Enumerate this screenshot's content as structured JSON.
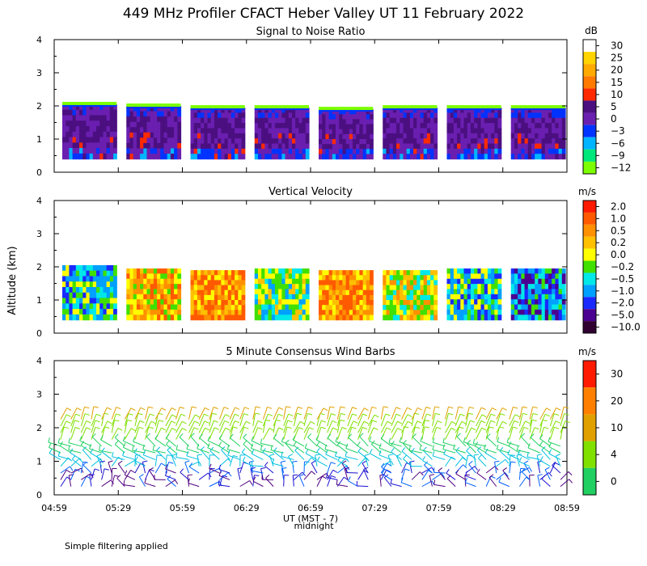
{
  "title": "449 MHz Profiler CFACT Heber Valley UT 11 February 2022",
  "ylabel": "Altitude (km)",
  "xlabel": "UT  (MST - 7)",
  "x_note": "midnight",
  "footnote": "Simple filtering applied",
  "x_ticks": [
    "04:59",
    "05:29",
    "05:59",
    "06:29",
    "06:59",
    "07:29",
    "07:59",
    "08:29",
    "08:59"
  ],
  "y_ticks": [
    "0",
    "1",
    "2",
    "3",
    "4"
  ],
  "chart_data": [
    {
      "type": "heatmap",
      "title": "Signal to Noise Ratio",
      "unit": "dB",
      "ylim": [
        0,
        4
      ],
      "colorbar": [
        "30",
        "25",
        "20",
        "15",
        "10",
        "5",
        "0",
        "−3",
        "−6",
        "−9",
        "−12"
      ],
      "colors": [
        "#ffffff",
        "#ffd400",
        "#ffaa00",
        "#ff7a00",
        "#ff2a00",
        "#4b0f80",
        "#6a1fb0",
        "#0033ff",
        "#00b4ff",
        "#00e87a",
        "#7cff00"
      ],
      "blocks": [
        {
          "start": "04:59",
          "end": "05:29",
          "bottom_km": 0.4,
          "top_km": 2.05
        },
        {
          "start": "05:29",
          "end": "05:59",
          "bottom_km": 0.4,
          "top_km": 2.0
        },
        {
          "start": "05:59",
          "end": "06:29",
          "bottom_km": 0.4,
          "top_km": 1.95
        },
        {
          "start": "06:29",
          "end": "06:59",
          "bottom_km": 0.4,
          "top_km": 1.95
        },
        {
          "start": "06:59",
          "end": "07:29",
          "bottom_km": 0.4,
          "top_km": 1.9
        },
        {
          "start": "07:29",
          "end": "07:59",
          "bottom_km": 0.4,
          "top_km": 1.95
        },
        {
          "start": "07:59",
          "end": "08:29",
          "bottom_km": 0.4,
          "top_km": 1.95
        },
        {
          "start": "08:29",
          "end": "08:59",
          "bottom_km": 0.4,
          "top_km": 1.95
        }
      ]
    },
    {
      "type": "heatmap",
      "title": "Vertical Velocity",
      "unit": "m/s",
      "ylim": [
        0,
        4
      ],
      "colorbar": [
        "2.0",
        "1.0",
        "0.5",
        "0.2",
        "0.0",
        "−0.2",
        "−0.5",
        "−1.0",
        "−2.0",
        "−5.0",
        "−10.0"
      ],
      "colors": [
        "#ff1a00",
        "#ff5a00",
        "#ff9000",
        "#ffc000",
        "#ffff00",
        "#40e000",
        "#00e8e8",
        "#00a0ff",
        "#1a2aff",
        "#4a0090",
        "#300030"
      ],
      "blocks": [
        {
          "start": "04:59",
          "end": "05:29",
          "bottom_km": 0.4,
          "top_km": 2.05
        },
        {
          "start": "05:29",
          "end": "05:59",
          "bottom_km": 0.4,
          "top_km": 1.95
        },
        {
          "start": "05:59",
          "end": "06:29",
          "bottom_km": 0.4,
          "top_km": 1.9
        },
        {
          "start": "06:29",
          "end": "06:59",
          "bottom_km": 0.4,
          "top_km": 1.95
        },
        {
          "start": "06:59",
          "end": "07:29",
          "bottom_km": 0.4,
          "top_km": 1.9
        },
        {
          "start": "07:29",
          "end": "07:59",
          "bottom_km": 0.4,
          "top_km": 1.9
        },
        {
          "start": "07:59",
          "end": "08:29",
          "bottom_km": 0.4,
          "top_km": 1.95
        },
        {
          "start": "08:29",
          "end": "08:59",
          "bottom_km": 0.4,
          "top_km": 1.95
        }
      ]
    },
    {
      "type": "wind_barbs",
      "title": "5 Minute Consensus Wind Barbs",
      "unit": "m/s",
      "ylim": [
        0,
        4
      ],
      "colorbar": [
        "30",
        "20",
        "10",
        "4",
        "0"
      ],
      "colors": [
        "#ff1a00",
        "#ff8000",
        "#e0a000",
        "#80e000",
        "#20d060",
        "#00c0e0",
        "#0060ff",
        "#1a10d0",
        "#500080"
      ],
      "heights_km": [
        0.25,
        0.45,
        0.65,
        0.85,
        1.05,
        1.25,
        1.45,
        1.65,
        1.85,
        2.05,
        2.25
      ],
      "times_per_block": 6,
      "top_km_per_block": [
        2.3,
        2.35,
        2.3,
        2.6,
        2.35,
        2.4,
        2.45,
        2.9
      ]
    }
  ]
}
